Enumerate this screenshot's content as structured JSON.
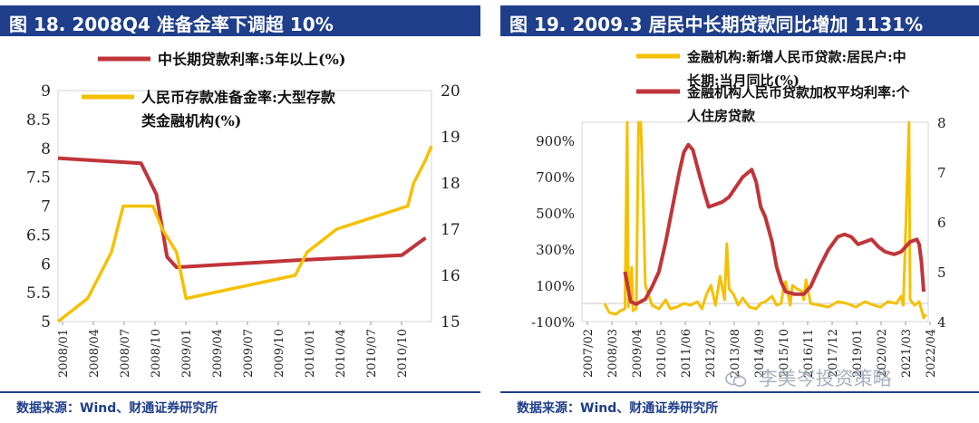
{
  "panels": {
    "left": {
      "title": "图 18. 2008Q4 准备金率下调超 10%",
      "source": "数据来源：Wind、财通证券研究所"
    },
    "right": {
      "title": "图 19. 2009.3  居民中长期贷款同比增加 1131%",
      "source": "数据来源：Wind、财通证券研究所"
    }
  },
  "watermark": "李美岑投资策略",
  "colors": {
    "red": "#c0353a",
    "yellow": "#f5c000",
    "navy": "#1f3f8c"
  },
  "chart_data": [
    {
      "type": "line",
      "title": "",
      "x_tick_labels": [
        "2008/01",
        "2008/04",
        "2008/07",
        "2008/10",
        "2009/01",
        "2009/04",
        "2009/07",
        "2009/10",
        "2010/01",
        "2010/04",
        "2010/07",
        "2010/10"
      ],
      "y_left": {
        "ylim": [
          5,
          9
        ],
        "ticks": [
          "5",
          "5.5",
          "6",
          "6.5",
          "7",
          "7.5",
          "8",
          "8.5",
          "9"
        ]
      },
      "y_right": {
        "ylim": [
          15,
          20
        ],
        "ticks": [
          "15",
          "16",
          "17",
          "18",
          "19",
          "20"
        ]
      },
      "series": [
        {
          "name": "中长期贷款利率:5年以上(%)",
          "axis": "left",
          "color": "#c0353a",
          "points": [
            [
              2008.0,
              7.83
            ],
            [
              2008.7,
              7.74
            ],
            [
              2008.83,
              7.2
            ],
            [
              2008.92,
              6.12
            ],
            [
              2009.0,
              5.94
            ],
            [
              2010.0,
              6.06
            ],
            [
              2010.9,
              6.15
            ],
            [
              2011.1,
              6.45
            ]
          ]
        },
        {
          "name": "人民币存款准备金率:大型存款类金融机构(%)",
          "axis": "right",
          "color": "#f5c000",
          "points": [
            [
              2008.0,
              15.0
            ],
            [
              2008.25,
              15.5
            ],
            [
              2008.45,
              16.5
            ],
            [
              2008.55,
              17.5
            ],
            [
              2008.8,
              17.5
            ],
            [
              2008.88,
              17.0
            ],
            [
              2009.0,
              16.5
            ],
            [
              2009.08,
              15.5
            ],
            [
              2010.0,
              16.0
            ],
            [
              2010.1,
              16.5
            ],
            [
              2010.35,
              17.0
            ],
            [
              2010.95,
              17.5
            ],
            [
              2011.0,
              18.0
            ],
            [
              2011.1,
              18.5
            ],
            [
              2011.15,
              18.8
            ]
          ]
        }
      ]
    },
    {
      "type": "line",
      "title": "",
      "x_tick_labels": [
        "2007/02",
        "2008/03",
        "2009/04",
        "2010/05",
        "2011/06",
        "2012/07",
        "2013/08",
        "2014/09",
        "2015/10",
        "2016/11",
        "2017/12",
        "2019/01",
        "2020/02",
        "2021/03",
        "2022/04"
      ],
      "y_left": {
        "ylim": [
          -100,
          1000
        ],
        "ticks": [
          "-100%",
          "100%",
          "300%",
          "500%",
          "700%",
          "900%"
        ]
      },
      "y_right": {
        "ylim": [
          4,
          8
        ],
        "ticks": [
          "4",
          "5",
          "6",
          "7",
          "8"
        ]
      },
      "series": [
        {
          "name": "金融机构:新增人民币贷款:居民户:中长期:当月同比(%)",
          "axis": "left",
          "color": "#f5c000",
          "points": [
            [
              2008.1,
              0
            ],
            [
              2008.3,
              -50
            ],
            [
              2008.6,
              -60
            ],
            [
              2008.8,
              -40
            ],
            [
              2009.0,
              -30
            ],
            [
              2009.1,
              1000
            ],
            [
              2009.15,
              -20
            ],
            [
              2009.3,
              200
            ],
            [
              2009.35,
              -40
            ],
            [
              2009.5,
              -30
            ],
            [
              2009.6,
              1000
            ],
            [
              2009.7,
              1000
            ],
            [
              2009.8,
              600
            ],
            [
              2009.9,
              100
            ],
            [
              2010.2,
              -10
            ],
            [
              2010.5,
              -30
            ],
            [
              2010.8,
              20
            ],
            [
              2011.0,
              -30
            ],
            [
              2011.3,
              -20
            ],
            [
              2011.6,
              0
            ],
            [
              2011.9,
              -10
            ],
            [
              2012.2,
              10
            ],
            [
              2012.4,
              -30
            ],
            [
              2012.6,
              50
            ],
            [
              2012.8,
              100
            ],
            [
              2013.0,
              -10
            ],
            [
              2013.2,
              150
            ],
            [
              2013.4,
              20
            ],
            [
              2013.5,
              330
            ],
            [
              2013.6,
              80
            ],
            [
              2013.8,
              50
            ],
            [
              2014.0,
              -10
            ],
            [
              2014.2,
              30
            ],
            [
              2014.5,
              -20
            ],
            [
              2014.8,
              -30
            ],
            [
              2015.0,
              0
            ],
            [
              2015.2,
              10
            ],
            [
              2015.5,
              40
            ],
            [
              2015.7,
              -10
            ],
            [
              2015.9,
              0
            ],
            [
              2016.0,
              80
            ],
            [
              2016.1,
              120
            ],
            [
              2016.3,
              -10
            ],
            [
              2016.4,
              100
            ],
            [
              2016.6,
              80
            ],
            [
              2016.8,
              70
            ],
            [
              2016.9,
              20
            ],
            [
              2017.0,
              130
            ],
            [
              2017.2,
              0
            ],
            [
              2017.6,
              -10
            ],
            [
              2018.0,
              -20
            ],
            [
              2018.4,
              10
            ],
            [
              2018.8,
              0
            ],
            [
              2019.2,
              -20
            ],
            [
              2019.6,
              10
            ],
            [
              2020.0,
              -10
            ],
            [
              2020.3,
              -20
            ],
            [
              2020.6,
              10
            ],
            [
              2021.0,
              0
            ],
            [
              2021.2,
              40
            ],
            [
              2021.3,
              -10
            ],
            [
              2021.55,
              1000
            ],
            [
              2021.6,
              20
            ],
            [
              2021.8,
              -10
            ],
            [
              2022.0,
              10
            ],
            [
              2022.2,
              -80
            ],
            [
              2022.3,
              -60
            ]
          ]
        },
        {
          "name": "金融机构人民币贷款加权平均利率:个人住房贷款",
          "axis": "right",
          "color": "#c0353a",
          "points": [
            [
              2009.0,
              5.0
            ],
            [
              2009.25,
              4.4
            ],
            [
              2009.5,
              4.35
            ],
            [
              2009.9,
              4.45
            ],
            [
              2010.2,
              4.7
            ],
            [
              2010.5,
              5.0
            ],
            [
              2010.8,
              5.6
            ],
            [
              2011.1,
              6.3
            ],
            [
              2011.4,
              7.0
            ],
            [
              2011.6,
              7.4
            ],
            [
              2011.8,
              7.55
            ],
            [
              2012.0,
              7.45
            ],
            [
              2012.2,
              7.1
            ],
            [
              2012.5,
              6.6
            ],
            [
              2012.7,
              6.3
            ],
            [
              2013.0,
              6.35
            ],
            [
              2013.3,
              6.4
            ],
            [
              2013.6,
              6.5
            ],
            [
              2013.9,
              6.7
            ],
            [
              2014.2,
              6.9
            ],
            [
              2014.6,
              7.05
            ],
            [
              2014.8,
              6.8
            ],
            [
              2015.0,
              6.3
            ],
            [
              2015.2,
              6.1
            ],
            [
              2015.5,
              5.6
            ],
            [
              2015.7,
              5.1
            ],
            [
              2015.9,
              4.8
            ],
            [
              2016.1,
              4.6
            ],
            [
              2016.5,
              4.55
            ],
            [
              2016.9,
              4.55
            ],
            [
              2017.2,
              4.7
            ],
            [
              2017.6,
              5.1
            ],
            [
              2018.0,
              5.45
            ],
            [
              2018.4,
              5.7
            ],
            [
              2018.7,
              5.75
            ],
            [
              2019.0,
              5.7
            ],
            [
              2019.3,
              5.55
            ],
            [
              2019.6,
              5.6
            ],
            [
              2019.9,
              5.65
            ],
            [
              2020.2,
              5.5
            ],
            [
              2020.5,
              5.4
            ],
            [
              2020.9,
              5.35
            ],
            [
              2021.2,
              5.4
            ],
            [
              2021.6,
              5.6
            ],
            [
              2021.9,
              5.65
            ],
            [
              2022.0,
              5.55
            ],
            [
              2022.1,
              5.2
            ],
            [
              2022.2,
              4.6
            ]
          ]
        }
      ]
    }
  ]
}
